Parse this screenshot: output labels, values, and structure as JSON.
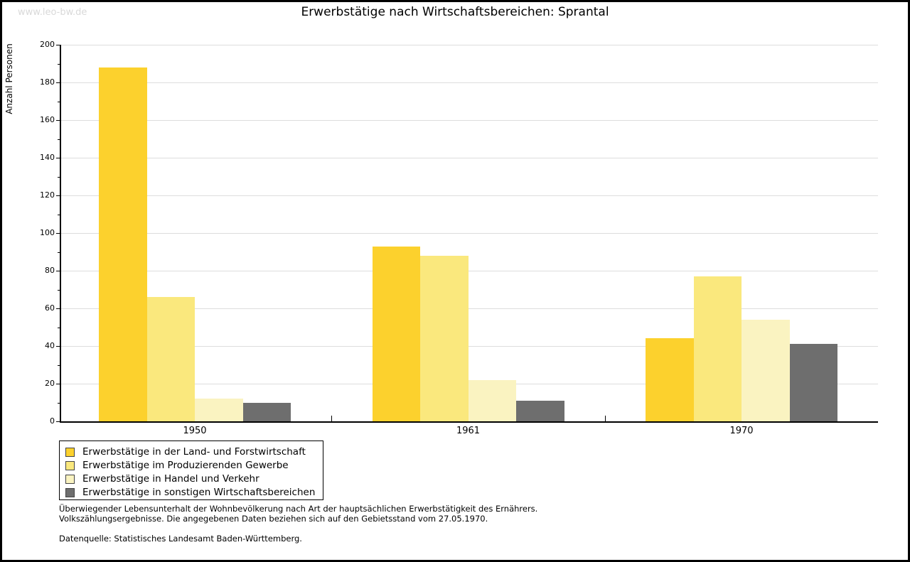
{
  "watermark": "www.leo-bw.de",
  "title": "Erwerbstätige nach Wirtschaftsbereichen: Sprantal",
  "chart_data": {
    "type": "bar",
    "categories": [
      "1950",
      "1961",
      "1970"
    ],
    "series": [
      {
        "name": "Erwerbstätige in der Land- und Forstwirtschaft",
        "color": "#FCD12D",
        "values": [
          188,
          93,
          44
        ]
      },
      {
        "name": "Erwerbstätige im Produzierenden Gewerbe",
        "color": "#FAE87D",
        "values": [
          66,
          88,
          77
        ]
      },
      {
        "name": "Erwerbstätige in Handel und Verkehr",
        "color": "#FAF3C1",
        "values": [
          12,
          22,
          54
        ]
      },
      {
        "name": "Erwerbstätige in sonstigen Wirtschaftsbereichen",
        "color": "#6E6E6E",
        "values": [
          10,
          11,
          41
        ]
      }
    ],
    "title": "Erwerbstätige nach Wirtschaftsbereichen: Sprantal",
    "xlabel": "",
    "ylabel": "Anzahl Personen",
    "ylim": [
      0,
      200
    ],
    "ytick_step": 20,
    "yminor_step": 10,
    "grid": true,
    "legend_position": "bottom-left"
  },
  "colors": {
    "grid": "#DDDDDD",
    "axis": "#000000",
    "watermark": "#D9D9D9",
    "background": "#FFFFFF"
  },
  "footer": {
    "line1": "Überwiegender Lebensunterhalt der Wohnbevölkerung nach Art der hauptsächlichen Erwerbstätigkeit des Ernährers.",
    "line2": "Volkszählungsergebnisse. Die angegebenen Daten beziehen sich auf den Gebietsstand vom 27.05.1970.",
    "source": "Datenquelle: Statistisches Landesamt Baden-Württemberg."
  }
}
